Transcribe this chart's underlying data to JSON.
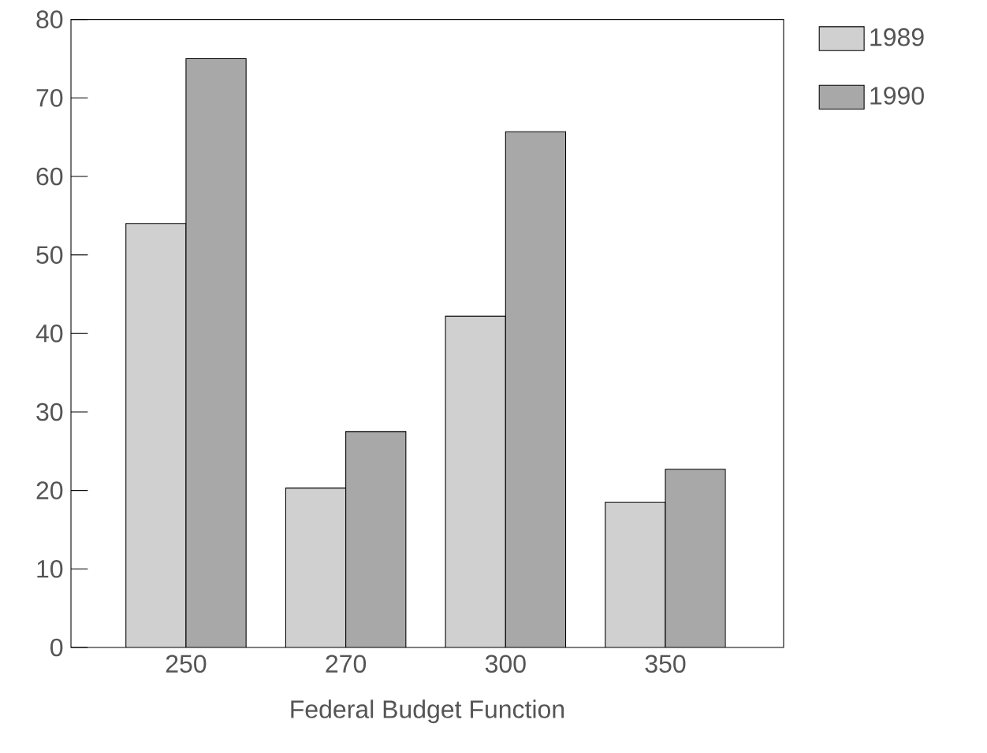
{
  "chart_data": {
    "type": "bar",
    "xlabel": "Federal Budget Function",
    "categories": [
      "250",
      "270",
      "300",
      "350"
    ],
    "series": [
      {
        "name": "1989",
        "color": "#d0d0d0",
        "values": [
          54,
          20.3,
          42.2,
          18.5
        ]
      },
      {
        "name": "1990",
        "color": "#a8a8a8",
        "values": [
          75,
          27.5,
          65.7,
          22.7
        ]
      }
    ],
    "ylim": [
      0,
      80
    ],
    "yticks": [
      0,
      10,
      20,
      30,
      40,
      50,
      60,
      70,
      80
    ],
    "grid": false,
    "legend": "top right"
  }
}
